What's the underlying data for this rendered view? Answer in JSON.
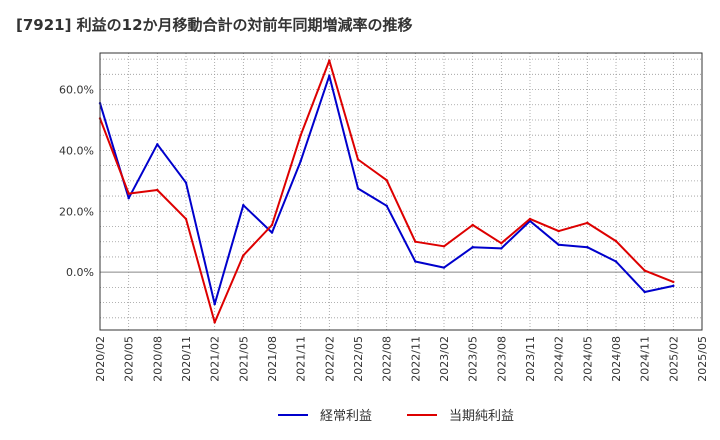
{
  "chart_data": {
    "type": "line",
    "title": "[7921]  利益の12か月移動合計の対前年同期増減率の推移",
    "xlabel": "",
    "ylabel": "",
    "ylim": [
      -19,
      72
    ],
    "yticks": [
      0,
      20,
      40,
      60
    ],
    "ytick_labels": [
      "0.0%",
      "20.0%",
      "40.0%",
      "60.0%"
    ],
    "categories": [
      "2020/02",
      "2020/05",
      "2020/08",
      "2020/11",
      "2021/02",
      "2021/05",
      "2021/08",
      "2021/11",
      "2022/02",
      "2022/05",
      "2022/08",
      "2022/11",
      "2023/02",
      "2023/05",
      "2023/08",
      "2023/11",
      "2024/02",
      "2024/05",
      "2024/08",
      "2024/11",
      "2025/02",
      "2025/05"
    ],
    "series": [
      {
        "name": "経常利益",
        "color": "#0000cc",
        "values": [
          55.5,
          24.3,
          42.0,
          29.4,
          -10.5,
          22.0,
          13.0,
          36.5,
          64.5,
          27.5,
          21.8,
          3.5,
          1.5,
          8.2,
          7.8,
          16.8,
          9.0,
          8.2,
          3.5,
          -6.5,
          -4.5,
          null
        ]
      },
      {
        "name": "当期純利益",
        "color": "#dd0000",
        "values": [
          50.5,
          25.8,
          27.0,
          17.5,
          -16.5,
          5.5,
          15.5,
          45.0,
          69.5,
          37.0,
          30.2,
          10.0,
          8.5,
          15.5,
          9.5,
          17.5,
          13.5,
          16.2,
          10.2,
          0.5,
          -3.2,
          null
        ]
      }
    ],
    "legend_position": "bottom-center",
    "grid": true
  }
}
